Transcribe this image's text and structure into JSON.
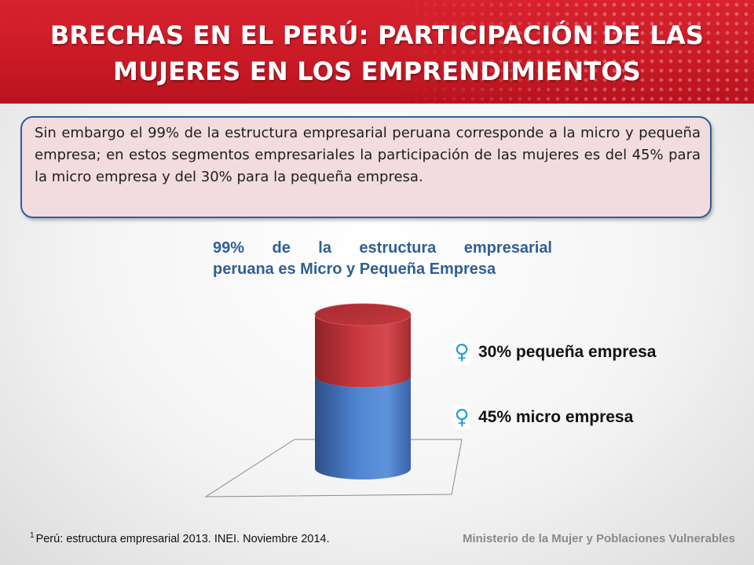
{
  "header": {
    "title_line1": "BRECHAS EN EL PERÚ: PARTICIPACIÓN DE LAS",
    "title_line2": "MUJERES EN LOS EMPRENDIMIENTOS"
  },
  "intro": {
    "text": "Sin embargo el 99% de la estructura empresarial peruana corresponde a la micro y pequeña empresa; en estos segmentos empresariales la participación de las mujeres es del 45% para la micro empresa y del 30% para la pequeña empresa."
  },
  "chart_data": {
    "type": "bar",
    "title_line1": "99% de la estructura empresarial",
    "title_line2": "peruana es Micro y Pequeña Empresa",
    "categories": [
      ""
    ],
    "series": [
      {
        "name": "45% micro empresa",
        "values": [
          45
        ],
        "color": "#4a7cc7"
      },
      {
        "name": "30% pequeña empresa",
        "values": [
          30
        ],
        "color": "#c8373e"
      }
    ],
    "stacked": true,
    "grid": false,
    "legend_placement": "right"
  },
  "legend": {
    "icon": "venus-icon",
    "icon_glyph": "♀",
    "items": [
      {
        "label": "30% pequeña empresa"
      },
      {
        "label": "45% micro empresa"
      }
    ]
  },
  "footer": {
    "footnote_mark": "1",
    "footnote": "Perú: estructura empresarial 2013. INEI. Noviembre 2014.",
    "ministry": "Ministerio de la Mujer y Poblaciones Vulnerables"
  }
}
